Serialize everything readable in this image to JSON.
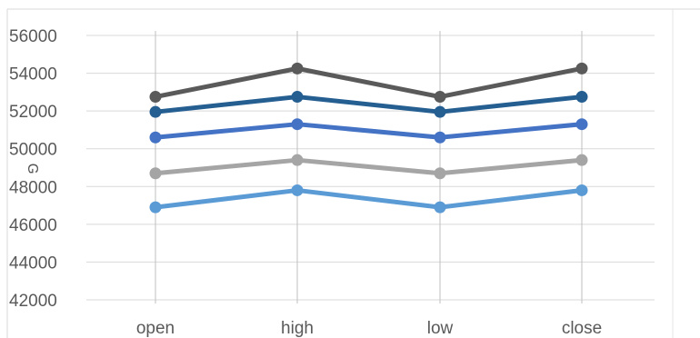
{
  "chart_data": {
    "type": "line",
    "title": "",
    "xlabel": "",
    "ylabel": "",
    "categories": [
      "open",
      "high",
      "low",
      "close"
    ],
    "ylim": [
      42000,
      56000
    ],
    "yticks": [
      "42000",
      "44000",
      "46000",
      "48000",
      "50000",
      "52000",
      "54000",
      "56000"
    ],
    "grid": "horizontal",
    "legend": "none",
    "series": [
      {
        "values": [
          52750,
          54250,
          52750,
          54250
        ],
        "color": "#5a5a5a"
      },
      {
        "values": [
          51950,
          52750,
          51950,
          52750
        ],
        "color": "#255e91"
      },
      {
        "values": [
          50600,
          51300,
          50600,
          51300
        ],
        "color": "#4472c4"
      },
      {
        "values": [
          48700,
          49400,
          48700,
          49400
        ],
        "color": "#a5a5a5"
      },
      {
        "values": [
          46900,
          47800,
          46900,
          47800
        ],
        "color": "#5b9bd5"
      }
    ],
    "stray_mark": "ᴳ"
  }
}
